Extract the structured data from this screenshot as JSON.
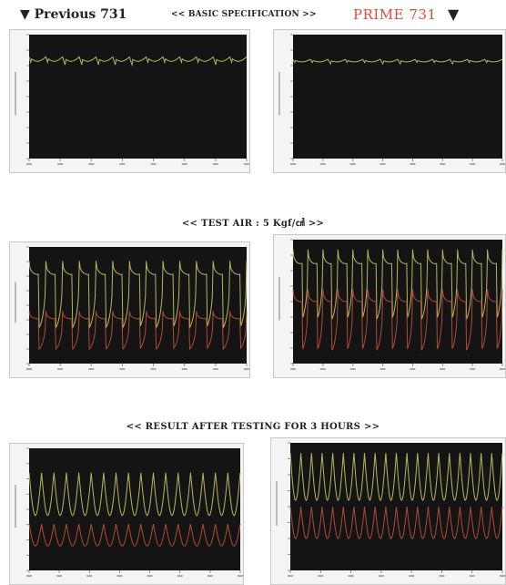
{
  "header": {
    "previous_label": "▼ Previous 731",
    "spec_label": "<< BASIC SPECIFICATION >>",
    "prime_label": "PRIME 731",
    "arrow_right": "▼"
  },
  "sections": [
    {
      "title": ""
    },
    {
      "title": "<< TEST AIR : 5 Kgf/㎠ >>"
    },
    {
      "title": "<< RESULT AFTER TESTING FOR 3 HOURS >>"
    }
  ],
  "colors": {
    "plot_bg": "#141414",
    "frame": "#c8c8c8",
    "wave_upper": "#c8c86a",
    "wave_lower": "#c0503a"
  },
  "chart_data": [
    {
      "type": "line",
      "panel": "basic-previous",
      "xlabel": "",
      "ylabel": "",
      "pattern": "flat",
      "cycles": 13,
      "upper": [
        0.82,
        0.68
      ],
      "lower": null
    },
    {
      "type": "line",
      "panel": "basic-prime",
      "xlabel": "",
      "ylabel": "",
      "pattern": "flat",
      "cycles": 12,
      "upper": [
        0.8,
        0.72
      ],
      "lower": null
    },
    {
      "type": "line",
      "panel": "testair-previous",
      "xlabel": "",
      "ylabel": "",
      "pattern": "spikes",
      "cycles": 13,
      "upper": [
        0.88,
        0.3
      ],
      "lower": [
        0.45,
        0.12
      ]
    },
    {
      "type": "line",
      "panel": "testair-prime",
      "xlabel": "",
      "ylabel": "",
      "pattern": "spikes",
      "cycles": 14,
      "upper": [
        0.92,
        0.35
      ],
      "lower": [
        0.6,
        0.1
      ]
    },
    {
      "type": "line",
      "panel": "result-previous",
      "xlabel": "",
      "ylabel": "",
      "pattern": "dense",
      "cycles": 17,
      "upper": [
        0.8,
        0.45
      ],
      "lower": [
        0.38,
        0.2
      ]
    },
    {
      "type": "line",
      "panel": "result-prime",
      "xlabel": "",
      "ylabel": "",
      "pattern": "dense",
      "cycles": 20,
      "upper": [
        0.92,
        0.55
      ],
      "lower": [
        0.5,
        0.25
      ]
    }
  ]
}
